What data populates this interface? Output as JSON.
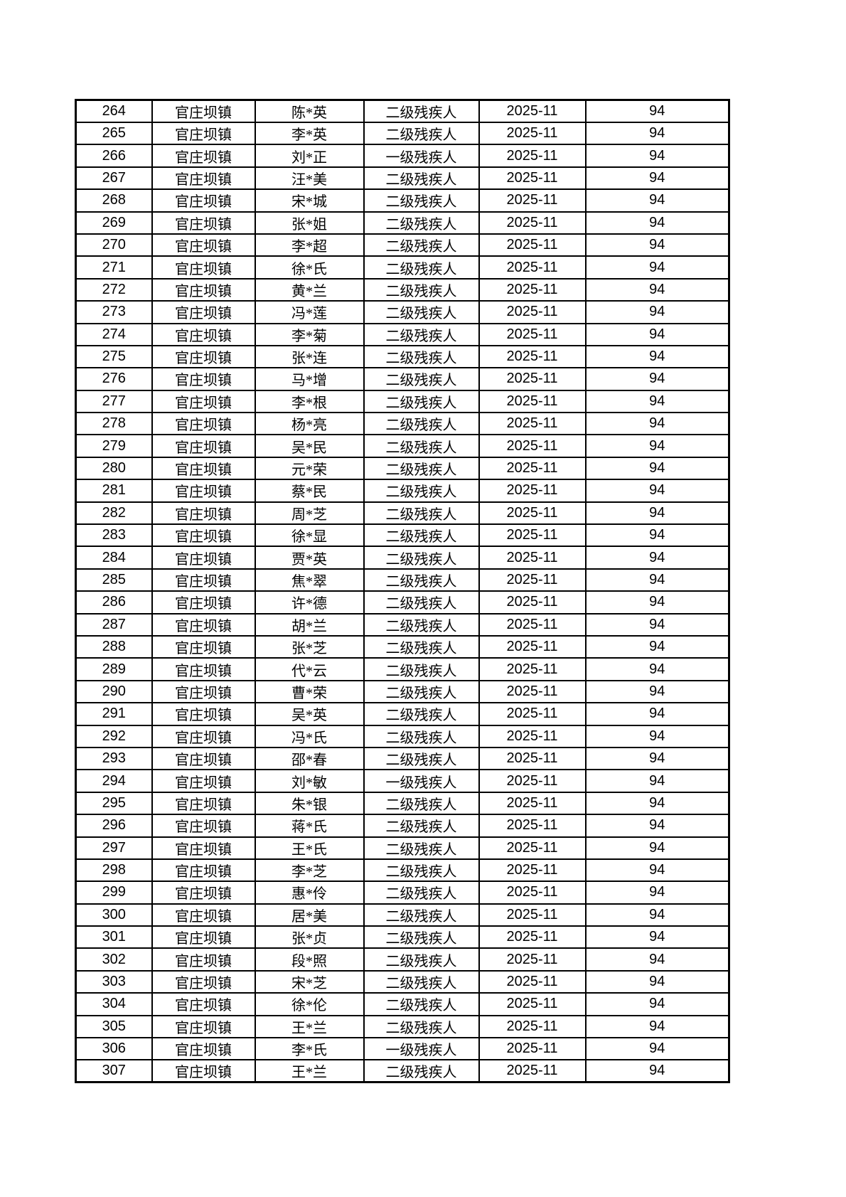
{
  "page": {
    "background_color": "#ffffff",
    "text_color": "#000000",
    "border_color": "#000000"
  },
  "table": {
    "description": "roster-table-page-fragment-no-header-visible",
    "columns": [
      {
        "key": "seq",
        "type": "num"
      },
      {
        "key": "town",
        "type": "cjk"
      },
      {
        "key": "name",
        "type": "cjk"
      },
      {
        "key": "level",
        "type": "cjk"
      },
      {
        "key": "month",
        "type": "num"
      },
      {
        "key": "amount",
        "type": "num"
      }
    ],
    "rows": [
      [
        "264",
        "官庄坝镇",
        "陈*英",
        "二级残疾人",
        "2025-11",
        "94"
      ],
      [
        "265",
        "官庄坝镇",
        "李*英",
        "二级残疾人",
        "2025-11",
        "94"
      ],
      [
        "266",
        "官庄坝镇",
        "刘*正",
        "一级残疾人",
        "2025-11",
        "94"
      ],
      [
        "267",
        "官庄坝镇",
        "汪*美",
        "二级残疾人",
        "2025-11",
        "94"
      ],
      [
        "268",
        "官庄坝镇",
        "宋*城",
        "二级残疾人",
        "2025-11",
        "94"
      ],
      [
        "269",
        "官庄坝镇",
        "张*姐",
        "二级残疾人",
        "2025-11",
        "94"
      ],
      [
        "270",
        "官庄坝镇",
        "李*超",
        "二级残疾人",
        "2025-11",
        "94"
      ],
      [
        "271",
        "官庄坝镇",
        "徐*氏",
        "二级残疾人",
        "2025-11",
        "94"
      ],
      [
        "272",
        "官庄坝镇",
        "黄*兰",
        "二级残疾人",
        "2025-11",
        "94"
      ],
      [
        "273",
        "官庄坝镇",
        "冯*莲",
        "二级残疾人",
        "2025-11",
        "94"
      ],
      [
        "274",
        "官庄坝镇",
        "李*菊",
        "二级残疾人",
        "2025-11",
        "94"
      ],
      [
        "275",
        "官庄坝镇",
        "张*连",
        "二级残疾人",
        "2025-11",
        "94"
      ],
      [
        "276",
        "官庄坝镇",
        "马*增",
        "二级残疾人",
        "2025-11",
        "94"
      ],
      [
        "277",
        "官庄坝镇",
        "李*根",
        "二级残疾人",
        "2025-11",
        "94"
      ],
      [
        "278",
        "官庄坝镇",
        "杨*亮",
        "二级残疾人",
        "2025-11",
        "94"
      ],
      [
        "279",
        "官庄坝镇",
        "吴*民",
        "二级残疾人",
        "2025-11",
        "94"
      ],
      [
        "280",
        "官庄坝镇",
        "元*荣",
        "二级残疾人",
        "2025-11",
        "94"
      ],
      [
        "281",
        "官庄坝镇",
        "蔡*民",
        "二级残疾人",
        "2025-11",
        "94"
      ],
      [
        "282",
        "官庄坝镇",
        "周*芝",
        "二级残疾人",
        "2025-11",
        "94"
      ],
      [
        "283",
        "官庄坝镇",
        "徐*显",
        "二级残疾人",
        "2025-11",
        "94"
      ],
      [
        "284",
        "官庄坝镇",
        "贾*英",
        "二级残疾人",
        "2025-11",
        "94"
      ],
      [
        "285",
        "官庄坝镇",
        "焦*翠",
        "二级残疾人",
        "2025-11",
        "94"
      ],
      [
        "286",
        "官庄坝镇",
        "许*德",
        "二级残疾人",
        "2025-11",
        "94"
      ],
      [
        "287",
        "官庄坝镇",
        "胡*兰",
        "二级残疾人",
        "2025-11",
        "94"
      ],
      [
        "288",
        "官庄坝镇",
        "张*芝",
        "二级残疾人",
        "2025-11",
        "94"
      ],
      [
        "289",
        "官庄坝镇",
        "代*云",
        "二级残疾人",
        "2025-11",
        "94"
      ],
      [
        "290",
        "官庄坝镇",
        "曹*荣",
        "二级残疾人",
        "2025-11",
        "94"
      ],
      [
        "291",
        "官庄坝镇",
        "吴*英",
        "二级残疾人",
        "2025-11",
        "94"
      ],
      [
        "292",
        "官庄坝镇",
        "冯*氏",
        "二级残疾人",
        "2025-11",
        "94"
      ],
      [
        "293",
        "官庄坝镇",
        "邵*春",
        "二级残疾人",
        "2025-11",
        "94"
      ],
      [
        "294",
        "官庄坝镇",
        "刘*敏",
        "一级残疾人",
        "2025-11",
        "94"
      ],
      [
        "295",
        "官庄坝镇",
        "朱*银",
        "二级残疾人",
        "2025-11",
        "94"
      ],
      [
        "296",
        "官庄坝镇",
        "蒋*氏",
        "二级残疾人",
        "2025-11",
        "94"
      ],
      [
        "297",
        "官庄坝镇",
        "王*氏",
        "二级残疾人",
        "2025-11",
        "94"
      ],
      [
        "298",
        "官庄坝镇",
        "李*芝",
        "二级残疾人",
        "2025-11",
        "94"
      ],
      [
        "299",
        "官庄坝镇",
        "惠*伶",
        "二级残疾人",
        "2025-11",
        "94"
      ],
      [
        "300",
        "官庄坝镇",
        "居*美",
        "二级残疾人",
        "2025-11",
        "94"
      ],
      [
        "301",
        "官庄坝镇",
        "张*贞",
        "二级残疾人",
        "2025-11",
        "94"
      ],
      [
        "302",
        "官庄坝镇",
        "段*照",
        "二级残疾人",
        "2025-11",
        "94"
      ],
      [
        "303",
        "官庄坝镇",
        "宋*芝",
        "二级残疾人",
        "2025-11",
        "94"
      ],
      [
        "304",
        "官庄坝镇",
        "徐*伦",
        "二级残疾人",
        "2025-11",
        "94"
      ],
      [
        "305",
        "官庄坝镇",
        "王*兰",
        "二级残疾人",
        "2025-11",
        "94"
      ],
      [
        "306",
        "官庄坝镇",
        "李*氏",
        "一级残疾人",
        "2025-11",
        "94"
      ],
      [
        "307",
        "官庄坝镇",
        "王*兰",
        "二级残疾人",
        "2025-11",
        "94"
      ]
    ]
  }
}
